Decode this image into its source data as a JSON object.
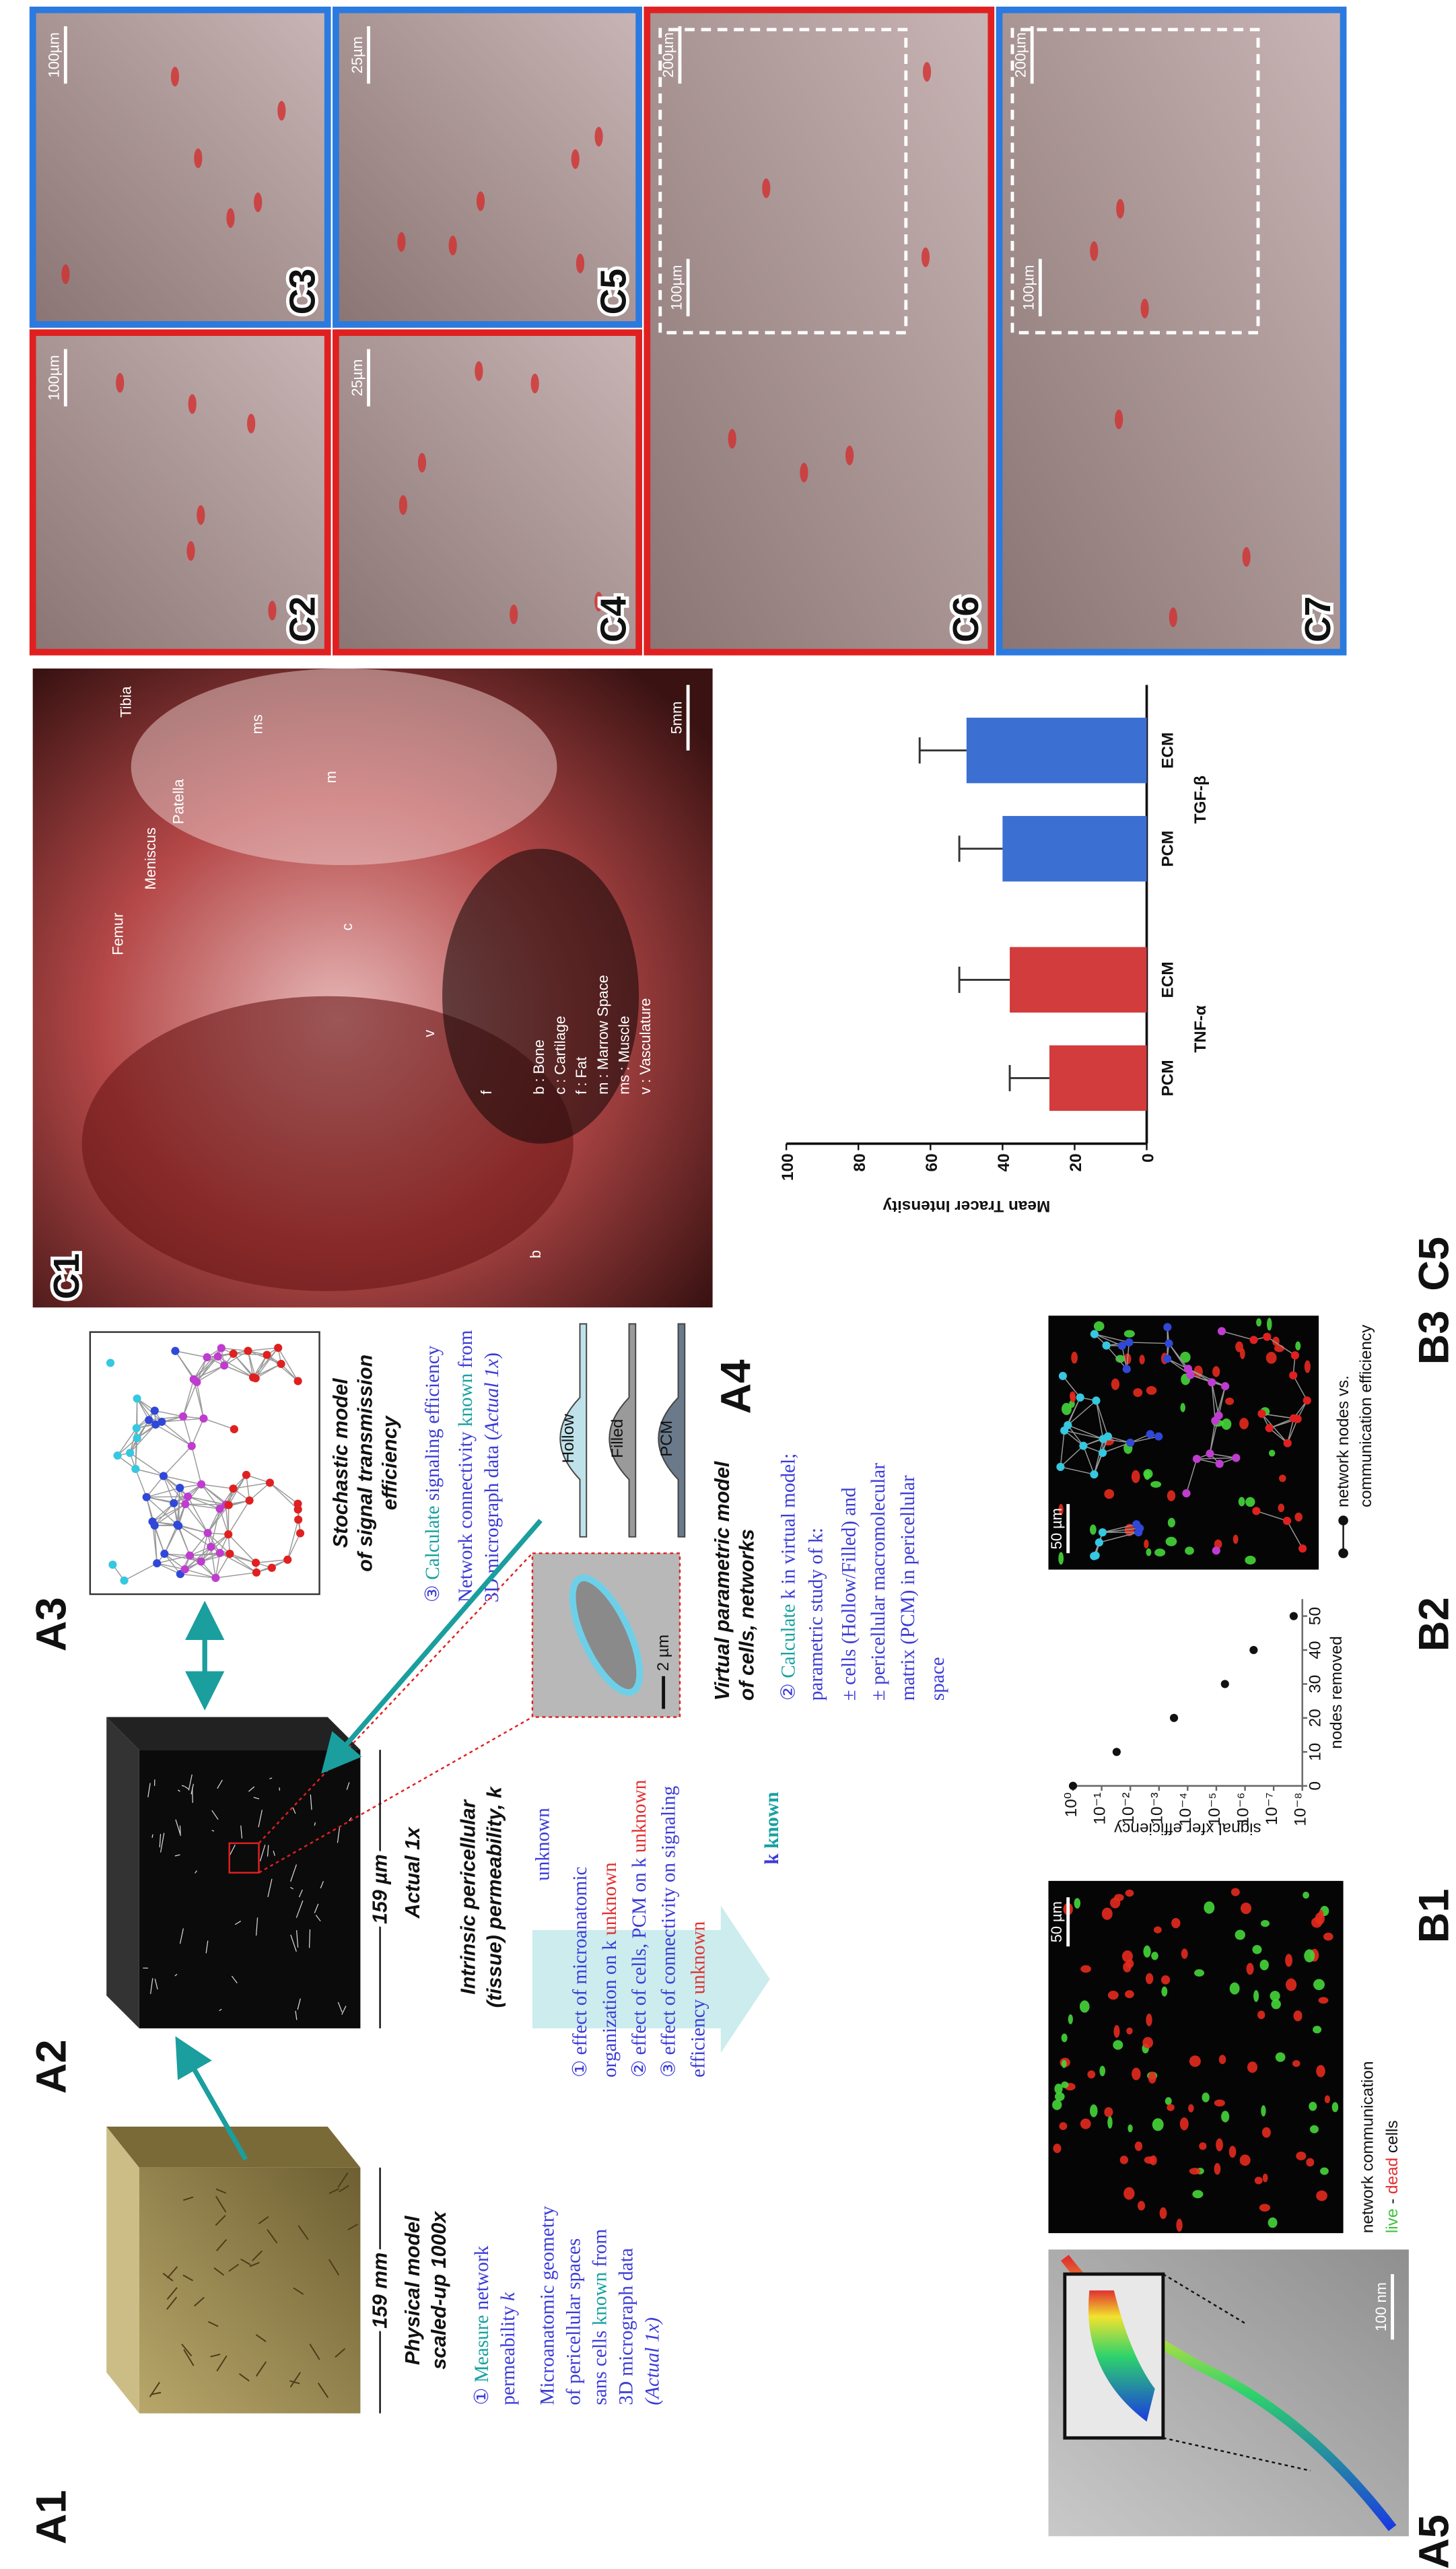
{
  "figure": {
    "A1": {
      "label": "A1",
      "size": "159 mm",
      "caption": [
        "Physical model",
        "scaled-up 1000x"
      ],
      "step": [
        [
          {
            "text": "① "
          },
          {
            "text": "Measure",
            "color": "#17a0a0"
          },
          {
            "text": " network"
          }
        ],
        [
          {
            "text": "permeability "
          },
          {
            "text": "k",
            "italic": true
          }
        ]
      ],
      "note": [
        [
          {
            "text": "Microanatomic geometry"
          }
        ],
        [
          {
            "text": "of pericellular spaces"
          }
        ],
        [
          {
            "text": "sans cells "
          },
          {
            "text": "known",
            "color": "#17a0a0"
          },
          {
            "text": " from"
          }
        ],
        [
          {
            "text": "3D micrograph data"
          }
        ],
        [
          {
            "text": "(Actual 1x)",
            "italic": true
          }
        ]
      ]
    },
    "A2": {
      "label": "A2",
      "size": "159 µm",
      "caption": "Actual 1x",
      "title": [
        "Intrinsic pericellular",
        "(tissue) permeability, k"
      ],
      "status": "unknown",
      "items": [
        [
          {
            "text": "① effect of microanatomic"
          }
        ],
        [
          {
            "text": "organization on k "
          },
          {
            "text": "unknown",
            "color": "#e03030"
          }
        ],
        [
          {
            "text": "② effect of cells, PCM on k "
          },
          {
            "text": "unknown",
            "color": "#e03030"
          }
        ],
        [
          {
            "text": "③ effect of connectivity on signaling"
          }
        ],
        [
          {
            "text": "efficiency "
          },
          {
            "text": "unknown",
            "color": "#e03030"
          }
        ]
      ],
      "result": [
        {
          "text": "k "
        },
        {
          "text": "known",
          "color": "#17a0a0"
        }
      ]
    },
    "A3": {
      "label": "A3",
      "title": [
        "Stochastic model",
        "of signal transmission",
        "efficiency"
      ],
      "step": [
        [
          {
            "text": "③ "
          },
          {
            "text": "Calculate",
            "color": "#17a0a0"
          },
          {
            "text": " signaling efficiency"
          }
        ]
      ],
      "note": [
        [
          {
            "text": "Network connectivity "
          },
          {
            "text": "known",
            "color": "#17a0a0"
          },
          {
            "text": " from"
          }
        ],
        [
          {
            "text": "3D micrograph data ("
          },
          {
            "text": "Actual 1x",
            "italic": true
          },
          {
            "text": ")"
          }
        ]
      ]
    },
    "A4": {
      "label": "A4",
      "scale": "2 µm",
      "models": [
        "Hollow",
        "Filled",
        "PCM"
      ],
      "title": [
        "Virtual parametric model",
        "of cells, networks"
      ],
      "step": [
        [
          {
            "text": "② "
          },
          {
            "text": "Calculate",
            "color": "#17a0a0"
          },
          {
            "text": " k in virtual model;"
          }
        ],
        [
          {
            "text": "parametric study of k:"
          }
        ]
      ],
      "note": [
        [
          {
            "text": "± cells (Hollow/Filled) and"
          }
        ],
        [
          {
            "text": "± pericellular macromolecular"
          }
        ],
        [
          {
            "text": "matrix (PCM) in pericellular"
          }
        ],
        [
          {
            "text": "space"
          }
        ]
      ]
    },
    "A5": {
      "label": "A5",
      "scale": "100 nm"
    },
    "B1": {
      "label": "B1",
      "scale": "50 µm",
      "caption": [
        [
          {
            "text": "network communication"
          }
        ],
        [
          {
            "text": "live",
            "color": "#3cc23c"
          },
          {
            "text": " - "
          },
          {
            "text": "dead",
            "color": "#e03030"
          },
          {
            "text": " cells"
          }
        ]
      ]
    },
    "B2": {
      "label": "B2",
      "type": "scatter",
      "y_label": "signal xfer efficiency",
      "x_label": "nodes removed",
      "x": [
        0,
        10,
        20,
        30,
        40,
        50
      ],
      "values": [
        1,
        0.03,
        0.0003,
        5e-06,
        5e-07,
        2e-08
      ],
      "xlim": [
        0,
        55
      ],
      "xticks": [
        0,
        10,
        20,
        30,
        40,
        50
      ],
      "log_y": true,
      "ylim": [
        1e-08,
        1
      ],
      "yticks": [
        {
          "value": 1,
          "label": "10⁰"
        },
        {
          "value": 0.1,
          "label": "10⁻¹"
        },
        {
          "value": 0.01,
          "label": "10⁻²"
        },
        {
          "value": 0.001,
          "label": "10⁻³"
        },
        {
          "value": 0.0001,
          "label": "10⁻⁴"
        },
        {
          "value": 1e-05,
          "label": "10⁻⁵"
        },
        {
          "value": 1e-06,
          "label": "10⁻⁶"
        },
        {
          "value": 1e-07,
          "label": "10⁻⁷"
        },
        {
          "value": 1e-08,
          "label": "10⁻⁸"
        }
      ],
      "color": "#111111"
    },
    "B3": {
      "label": "B3",
      "scale": "50 µm",
      "legend": [
        "network nodes vs.",
        "communication efficiency"
      ]
    },
    "C1": {
      "label": "C1",
      "regions": [
        "Femur",
        "Meniscus",
        "Patella",
        "Tibia"
      ],
      "marks": [
        "b",
        "c",
        "f",
        "m",
        "ms",
        "v"
      ],
      "legend": [
        "b : Bone",
        "c : Cartilage",
        "f : Fat",
        "m : Marrow Space",
        "ms : Muscle",
        "v : Vasculature"
      ],
      "scale": "5mm"
    },
    "C2": {
      "label": "C2",
      "scale": "100µm"
    },
    "C3": {
      "label": "C3",
      "scale": "100µm"
    },
    "C4": {
      "label": "C4",
      "scale": "25µm"
    },
    "C5": {
      "label": "C5",
      "scale": "25µm"
    },
    "C6": {
      "label": "C6",
      "scale": "200µm",
      "inset_scale": "100µm"
    },
    "C7": {
      "label": "C7",
      "scale": "200µm",
      "inset_scale": "100µm"
    },
    "C5_chart": {
      "label": "C5",
      "type": "bar",
      "y_label": "Mean Tracer Intensity",
      "ylim": [
        0,
        100
      ],
      "yticks": [
        0,
        20,
        40,
        60,
        80,
        100
      ],
      "groups": [
        {
          "name": "TNF-α",
          "color": "#d23c3c",
          "categories": [
            "PCM",
            "ECM"
          ],
          "values": [
            27,
            38
          ],
          "errors": [
            11,
            14
          ]
        },
        {
          "name": "TGF-β",
          "color": "#3c6fd2",
          "categories": [
            "PCM",
            "ECM"
          ],
          "values": [
            40,
            50
          ],
          "errors": [
            12,
            13
          ]
        }
      ]
    }
  }
}
